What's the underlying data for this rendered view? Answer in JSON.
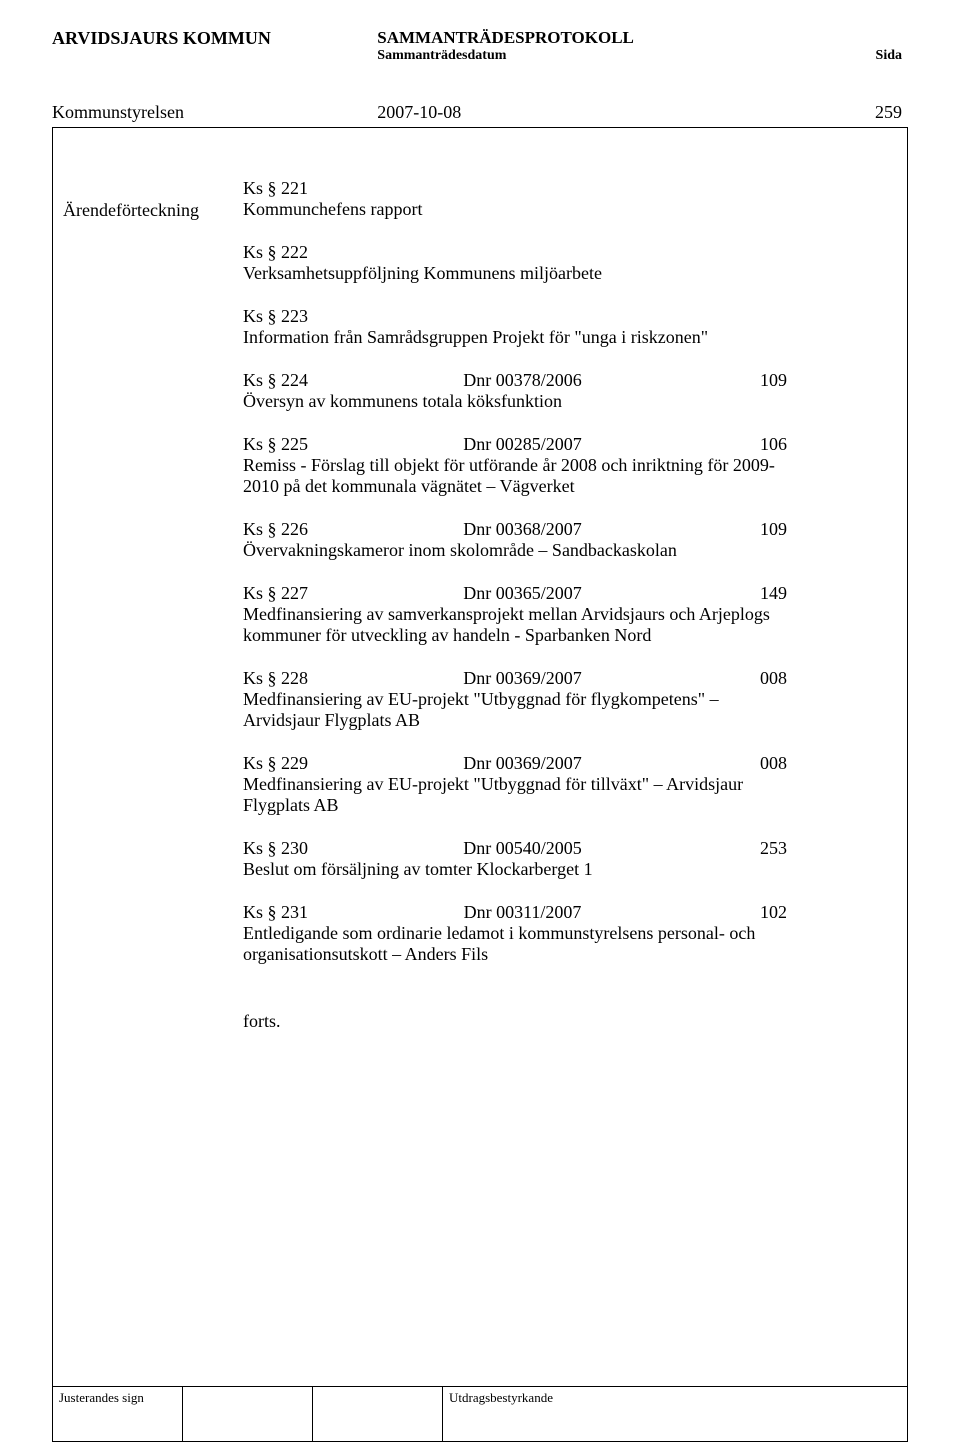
{
  "header": {
    "org": "ARVIDSJAURS KOMMUN",
    "title": "SAMMANTRÄDESPROTOKOLL",
    "subtitle": "Sammanträdesdatum",
    "page_label": "Sida"
  },
  "meta": {
    "body_name": "Kommunstyrelsen",
    "meeting_date": "2007-10-08",
    "page_number": "259"
  },
  "left_label": "Ärendeförteckning",
  "first_block": {
    "ks": "Ks § 221",
    "desc": "Kommunchefens rapport"
  },
  "plain_items": [
    {
      "ks": "Ks § 222",
      "desc": "Verksamhetsuppföljning Kommunens miljöarbete"
    },
    {
      "ks": "Ks § 223",
      "desc": "Information från Samrådsgruppen Projekt för \"unga i riskzonen\""
    }
  ],
  "coded_items": [
    {
      "ks": "Ks § 224",
      "dnr": "Dnr 00378/2006",
      "code": "109",
      "desc": "Översyn av kommunens totala köksfunktion"
    },
    {
      "ks": "Ks § 225",
      "dnr": "Dnr 00285/2007",
      "code": "106",
      "desc": "Remiss - Förslag till objekt för utförande år 2008 och inriktning för 2009-2010 på det kommunala vägnätet – Vägverket"
    },
    {
      "ks": "Ks § 226",
      "dnr": "Dnr 00368/2007",
      "code": "109",
      "desc": "Övervakningskameror inom skolområde – Sandbackaskolan"
    },
    {
      "ks": "Ks § 227",
      "dnr": "Dnr 00365/2007",
      "code": "149",
      "desc": "Medfinansiering av samverkansprojekt mellan Arvidsjaurs och Arjeplogs kommuner för utveckling av handeln - Sparbanken Nord"
    },
    {
      "ks": "Ks § 228",
      "dnr": "Dnr 00369/2007",
      "code": "008",
      "desc": "Medfinansiering av EU-projekt \"Utbyggnad för flygkompetens\" – Arvidsjaur Flygplats AB"
    },
    {
      "ks": "Ks § 229",
      "dnr": "Dnr 00369/2007",
      "code": "008",
      "desc": "Medfinansiering av EU-projekt \"Utbyggnad för tillväxt\" – Arvidsjaur Flygplats AB"
    },
    {
      "ks": "Ks § 230",
      "dnr": "Dnr 00540/2005",
      "code": "253",
      "desc": "Beslut om försäljning av tomter Klockarberget 1"
    },
    {
      "ks": "Ks § 231",
      "dnr": "Dnr 00311/2007",
      "code": "102",
      "desc": "Entledigande som ordinarie ledamot i kommunstyrelsens personal- och organisationsutskott – Anders Fils"
    }
  ],
  "forts": "forts.",
  "footer": {
    "left_label": "Justerandes sign",
    "right_label": "Utdragsbestyrkande"
  }
}
